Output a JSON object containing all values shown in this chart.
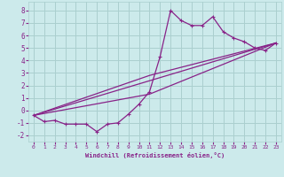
{
  "xlabel": "Windchill (Refroidissement éolien,°C)",
  "bg_color": "#cceaeb",
  "grid_color": "#aacfcf",
  "line_color": "#882288",
  "xlim": [
    -0.5,
    23.5
  ],
  "ylim": [
    -2.5,
    8.7
  ],
  "xticks": [
    0,
    1,
    2,
    3,
    4,
    5,
    6,
    7,
    8,
    9,
    10,
    11,
    12,
    13,
    14,
    15,
    16,
    17,
    18,
    19,
    20,
    21,
    22,
    23
  ],
  "yticks": [
    -2,
    -1,
    0,
    1,
    2,
    3,
    4,
    5,
    6,
    7,
    8
  ],
  "series1_x": [
    0,
    1,
    2,
    3,
    4,
    5,
    6,
    7,
    8,
    9,
    10,
    11,
    12,
    13,
    14,
    15,
    16,
    17,
    18,
    19,
    20,
    21,
    22,
    23
  ],
  "series1_y": [
    -0.4,
    -0.9,
    -0.8,
    -1.1,
    -1.1,
    -1.1,
    -1.7,
    -1.1,
    -1.0,
    -0.3,
    0.5,
    1.5,
    4.3,
    8.0,
    7.2,
    6.8,
    6.8,
    7.5,
    6.3,
    5.8,
    5.5,
    5.0,
    4.8,
    5.4
  ],
  "series2_x": [
    0,
    23
  ],
  "series2_y": [
    -0.4,
    5.4
  ],
  "series3_x": [
    0,
    11,
    23
  ],
  "series3_y": [
    -0.4,
    2.8,
    5.4
  ],
  "series4_x": [
    0,
    11,
    23
  ],
  "series4_y": [
    -0.4,
    1.3,
    5.4
  ]
}
